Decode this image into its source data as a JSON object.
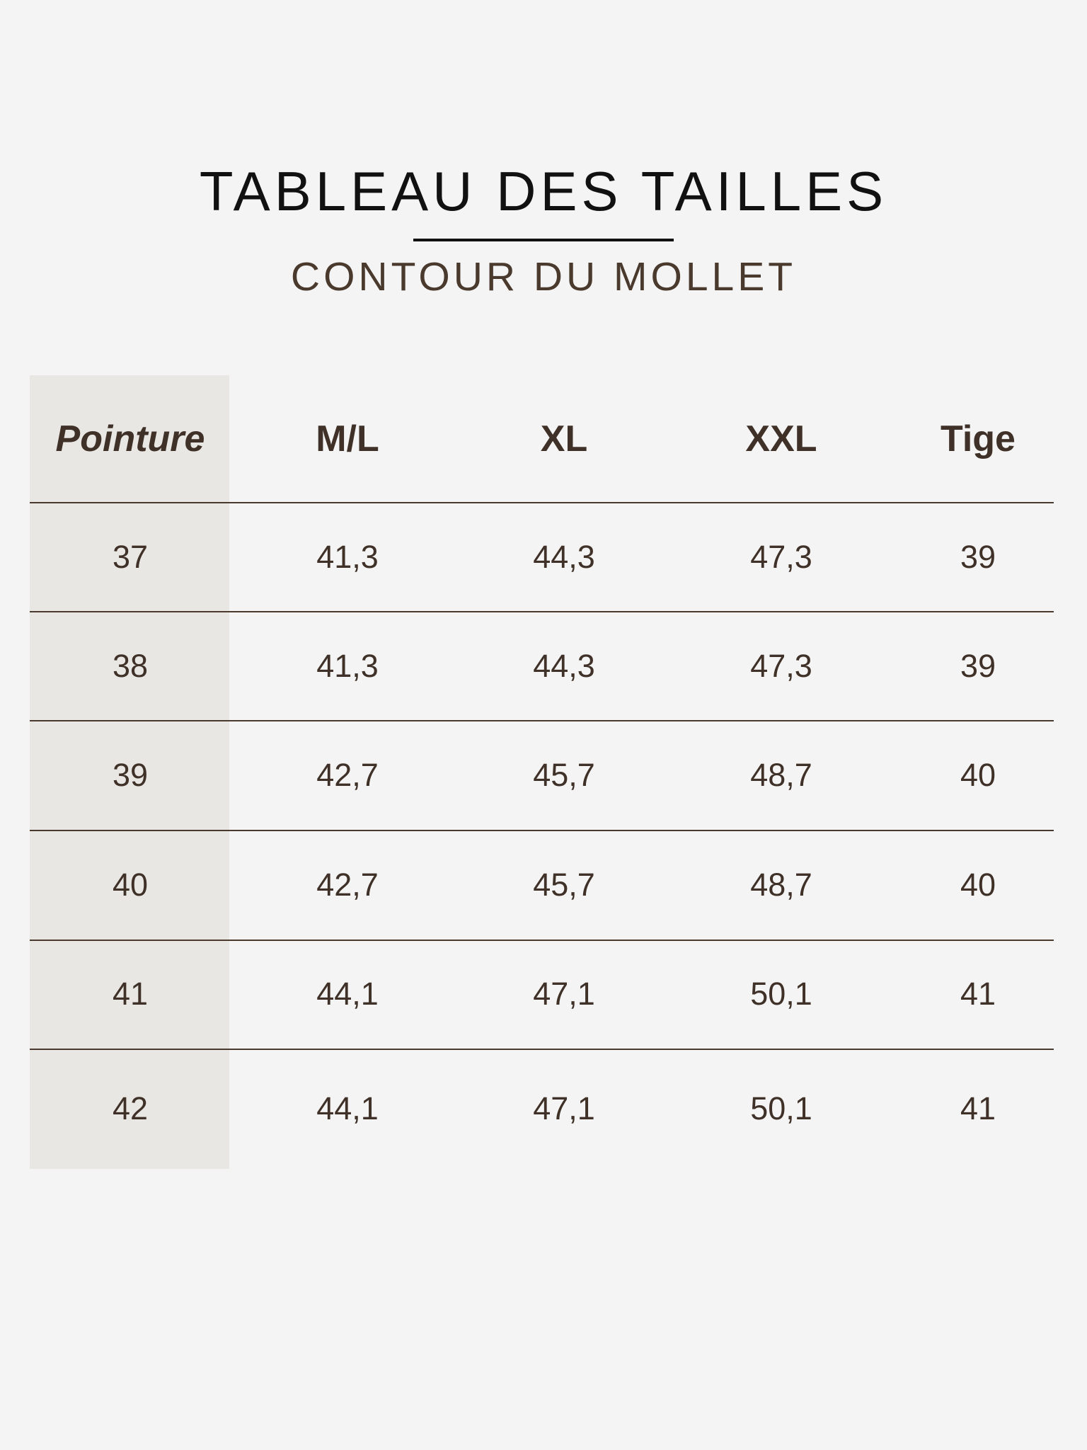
{
  "title": "TABLEAU DES TAILLES",
  "subtitle": "CONTOUR DU MOLLET",
  "colors": {
    "text": "#3f3128",
    "shaded_column": "#e9e7e3",
    "background": "#f4f4f4",
    "rule": "#4a3a2e"
  },
  "table": {
    "headers": [
      "Pointure",
      "M/L",
      "XL",
      "XXL",
      "Tige"
    ],
    "rows": [
      [
        "37",
        "41,3",
        "44,3",
        "47,3",
        "39"
      ],
      [
        "38",
        "41,3",
        "44,3",
        "47,3",
        "39"
      ],
      [
        "39",
        "42,7",
        "45,7",
        "48,7",
        "40"
      ],
      [
        "40",
        "42,7",
        "45,7",
        "48,7",
        "40"
      ],
      [
        "41",
        "44,1",
        "47,1",
        "50,1",
        "41"
      ],
      [
        "42",
        "44,1",
        "47,1",
        "50,1",
        "41"
      ]
    ]
  }
}
